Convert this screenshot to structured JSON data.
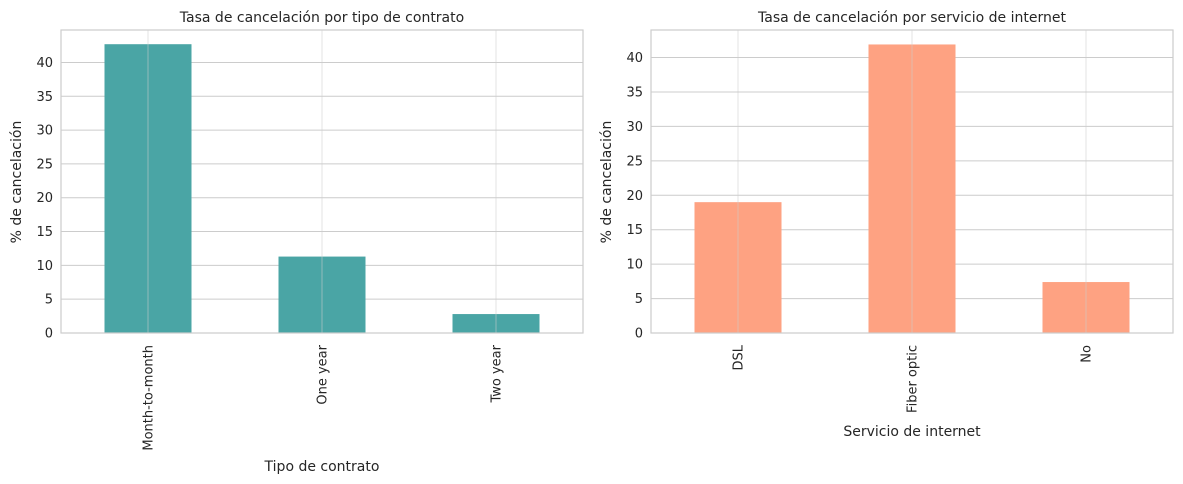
{
  "chart_data": [
    {
      "type": "bar",
      "title": "Tasa de cancelación por tipo de contrato",
      "xlabel": "Tipo de contrato",
      "ylabel": "% de cancelación",
      "categories": [
        "Month-to-month",
        "One year",
        "Two year"
      ],
      "values": [
        42.7,
        11.3,
        2.8
      ],
      "ylim": [
        0,
        44.8
      ],
      "yticks": [
        "0",
        "5",
        "10",
        "15",
        "20",
        "25",
        "30",
        "35",
        "40"
      ],
      "color": "#4aa5a5",
      "grid": true
    },
    {
      "type": "bar",
      "title": "Tasa de cancelación por servicio de internet",
      "xlabel": "Servicio de internet",
      "ylabel": "% de cancelación",
      "categories": [
        "DSL",
        "Fiber optic",
        "No"
      ],
      "values": [
        19.0,
        41.9,
        7.4
      ],
      "ylim": [
        0,
        44.0
      ],
      "yticks": [
        "0",
        "5",
        "10",
        "15",
        "20",
        "25",
        "30",
        "35",
        "40"
      ],
      "color": "#fea282",
      "grid": true
    }
  ]
}
